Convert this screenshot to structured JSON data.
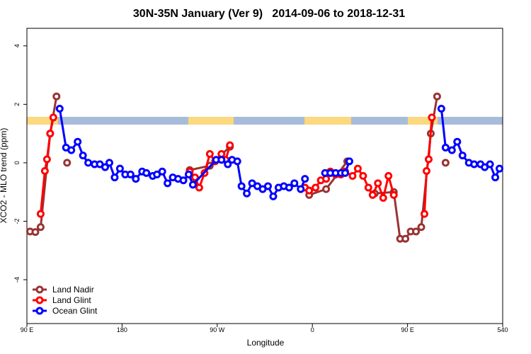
{
  "chart_data": {
    "type": "line",
    "title": "30N-35N January (Ver 9)   2014-09-06 to 2018-12-31",
    "x_label": "Longitude",
    "y_label": "XCO2 - MLO trend (ppm)",
    "xlim": [
      90,
      540
    ],
    "ylim": [
      -5.5,
      4.6
    ],
    "xticks": [
      {
        "value": 90,
        "label": "90 E"
      },
      180,
      {
        "value": 270,
        "label": "90 W"
      },
      {
        "value": 360,
        "label": "0"
      },
      {
        "value": 450,
        "label": "90 E"
      },
      540
    ],
    "yticks": [
      -4,
      -2,
      0,
      2,
      4
    ],
    "legend": "bottomleft",
    "series": [
      {
        "name": "Land Nadir",
        "color": "#993333",
        "x": [
          93,
          98,
          103,
          112,
          118,
          null,
          128,
          null,
          244,
          263,
          282,
          null,
          357,
          373,
          393,
          null,
          419,
          437,
          443,
          448,
          453,
          458,
          463,
          472,
          478,
          null,
          486
        ],
        "values": [
          -2.35,
          -2.37,
          -2.2,
          1.0,
          2.27,
          null,
          0.0,
          null,
          -0.25,
          -0.1,
          0.55,
          null,
          -1.1,
          -0.9,
          0.05,
          null,
          -1.05,
          -1.0,
          -2.6,
          -2.6,
          -2.35,
          -2.35,
          -2.2,
          1.0,
          2.27,
          null,
          0.0
        ]
      },
      {
        "name": "Land Glint",
        "color": "#ff0000",
        "x": [
          103,
          107,
          109,
          112,
          115,
          null,
          244,
          249,
          253,
          258,
          263,
          268,
          274,
          278,
          282,
          null,
          353,
          357,
          363,
          368,
          373,
          377,
          382,
          387,
          391,
          398,
          403,
          408,
          413,
          417,
          422,
          427,
          432,
          437,
          null,
          466,
          468,
          470,
          473
        ],
        "values": [
          -1.75,
          -0.28,
          0.12,
          1.0,
          1.55,
          null,
          -0.3,
          -0.5,
          -0.85,
          -0.35,
          0.3,
          0.05,
          0.3,
          0.1,
          0.6,
          null,
          -0.85,
          -0.95,
          -0.85,
          -0.6,
          -0.55,
          -0.3,
          -0.4,
          -0.4,
          -0.3,
          -0.45,
          -0.2,
          -0.45,
          -0.85,
          -1.1,
          -0.7,
          -1.2,
          -0.45,
          -1.1,
          null,
          -1.75,
          -0.28,
          0.12,
          1.55
        ]
      },
      {
        "name": "Ocean Glint",
        "color": "#0000ff",
        "x": [
          121,
          127,
          132,
          138,
          143,
          148,
          154,
          159,
          164,
          168,
          173,
          178,
          183,
          188,
          193,
          199,
          203,
          209,
          213,
          218,
          223,
          228,
          233,
          238,
          243,
          247,
          269,
          274,
          280,
          284,
          289,
          293,
          298,
          303,
          308,
          313,
          318,
          323,
          328,
          333,
          338,
          343,
          349,
          353,
          null,
          372,
          377,
          382,
          387,
          391,
          395,
          null,
          482,
          486,
          492,
          497,
          502,
          508,
          513,
          519,
          523,
          528,
          533,
          537
        ],
        "values": [
          1.85,
          0.52,
          0.43,
          0.72,
          0.25,
          0.0,
          -0.05,
          -0.05,
          -0.15,
          0.0,
          -0.5,
          -0.2,
          -0.4,
          -0.4,
          -0.55,
          -0.3,
          -0.35,
          -0.45,
          -0.4,
          -0.3,
          -0.7,
          -0.5,
          -0.55,
          -0.6,
          -0.4,
          -0.75,
          0.1,
          0.1,
          -0.05,
          0.1,
          0.05,
          -0.8,
          -1.05,
          -0.7,
          -0.8,
          -0.9,
          -0.8,
          -1.15,
          -0.85,
          -0.8,
          -0.85,
          -0.7,
          -0.9,
          -0.55,
          null,
          -0.35,
          -0.35,
          -0.35,
          -0.35,
          -0.35,
          0.05,
          null,
          1.85,
          0.52,
          0.43,
          0.72,
          0.25,
          0.0,
          -0.05,
          -0.05,
          -0.15,
          -0.05,
          -0.5,
          -0.2
        ]
      }
    ]
  }
}
